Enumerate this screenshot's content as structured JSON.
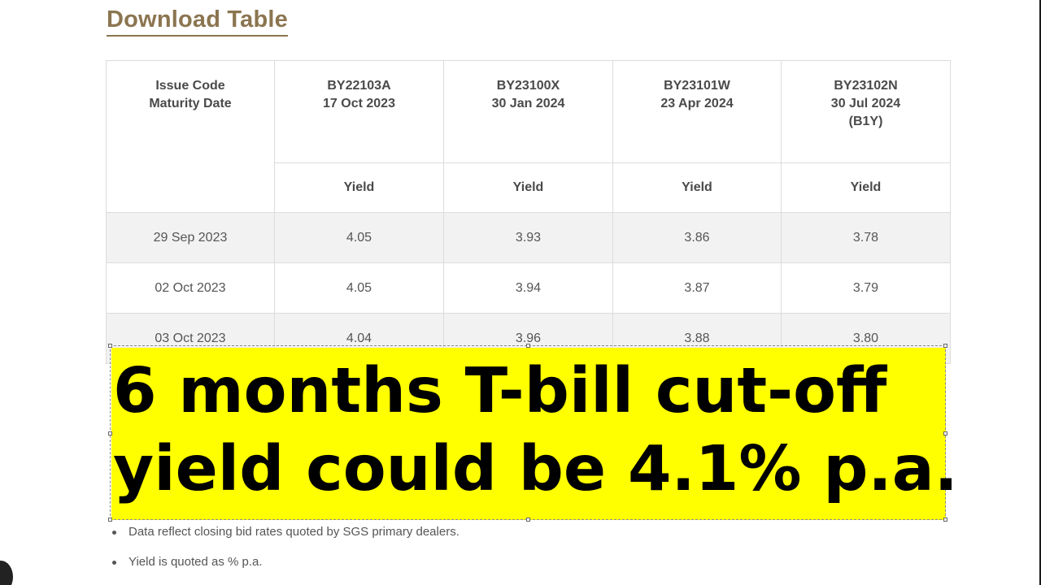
{
  "download": {
    "label": "Download Table"
  },
  "table": {
    "header": {
      "label_line1": "Issue Code",
      "label_line2": "Maturity Date",
      "columns": [
        {
          "code": "BY22103A",
          "maturity": "17 Oct 2023",
          "extra": ""
        },
        {
          "code": "BY23100X",
          "maturity": "30 Jan 2024",
          "extra": ""
        },
        {
          "code": "BY23101W",
          "maturity": "23 Apr 2024",
          "extra": ""
        },
        {
          "code": "BY23102N",
          "maturity": "30 Jul 2024",
          "extra": "(B1Y)"
        }
      ],
      "sub_label": "Yield"
    },
    "rows": [
      {
        "date": "29 Sep 2023",
        "values": [
          "4.05",
          "3.93",
          "3.86",
          "3.78"
        ]
      },
      {
        "date": "02 Oct 2023",
        "values": [
          "4.05",
          "3.94",
          "3.87",
          "3.79"
        ]
      },
      {
        "date": "03 Oct 2023",
        "values": [
          "4.04",
          "3.96",
          "3.88",
          "3.80"
        ]
      }
    ]
  },
  "banner": {
    "line1": "6 months T-bill cut-off",
    "line2": "yield could be 4.1% p.a.",
    "background": "#ffff00"
  },
  "notes": [
    "Data reflect closing bid rates quoted by SGS primary dealers.",
    "Yield is quoted as % p.a."
  ]
}
